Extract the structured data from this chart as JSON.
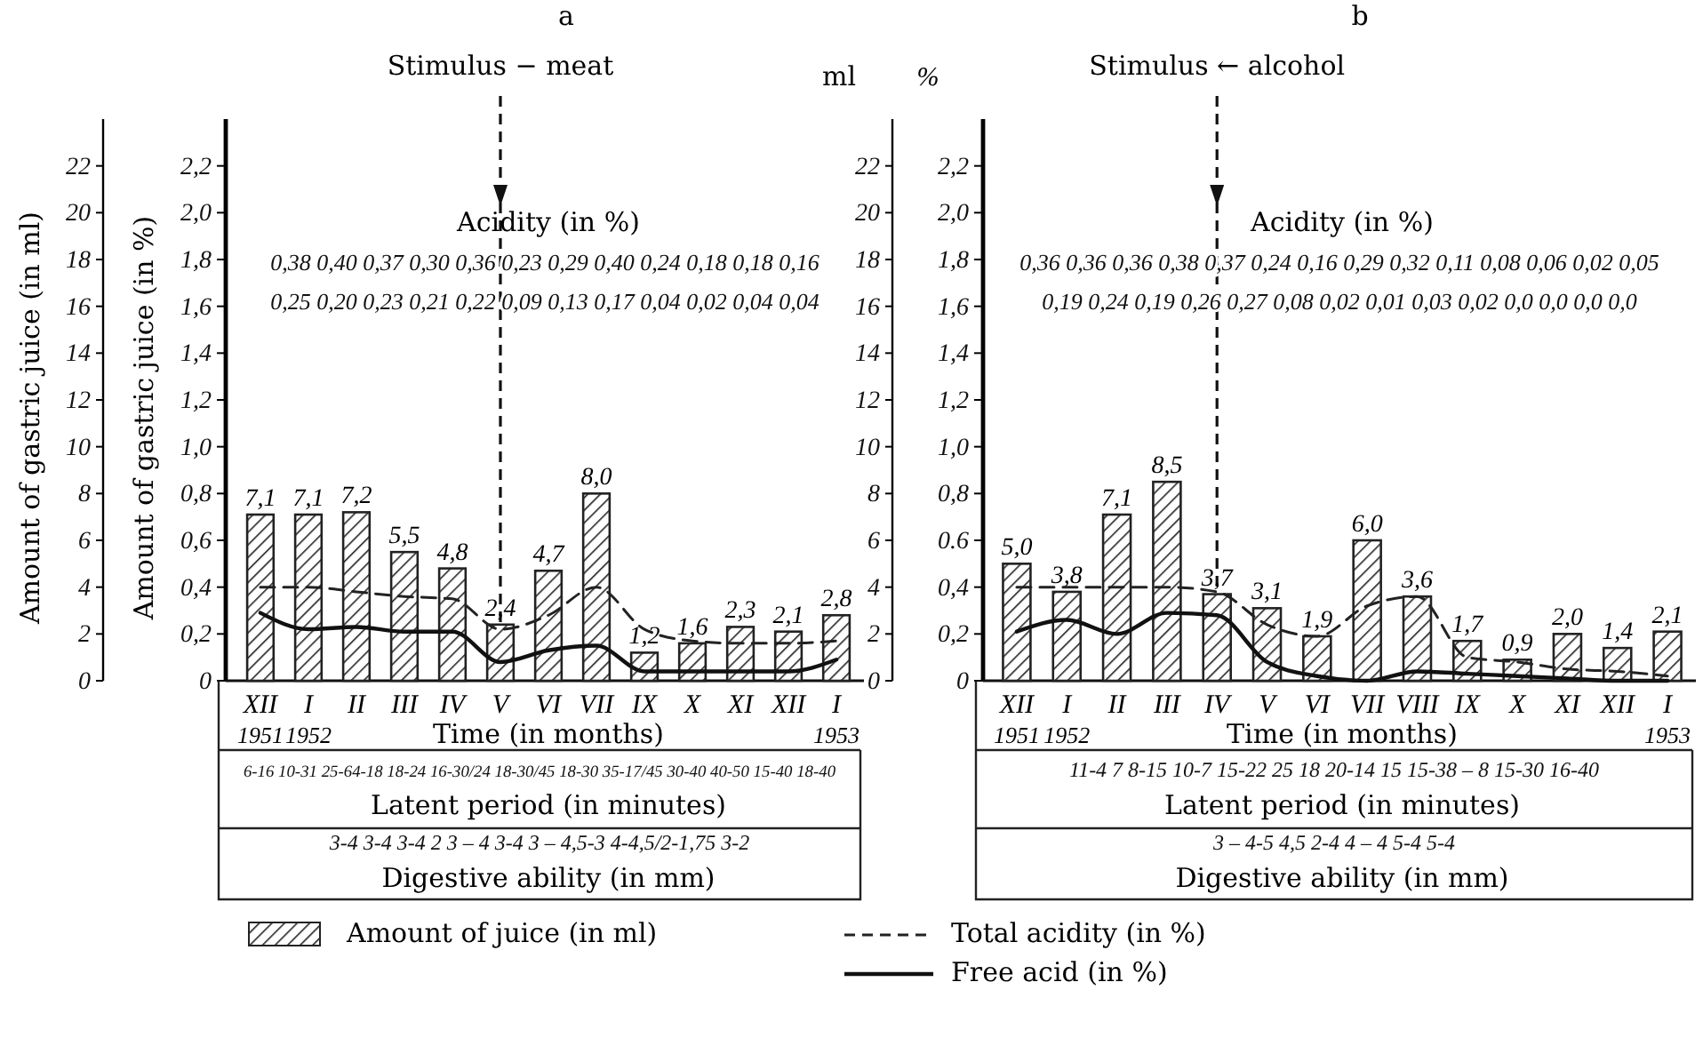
{
  "chart_data": [
    {
      "type": "bar",
      "title": "a",
      "xlabel": "Time (in months)",
      "ylabel": "Amount of gastric juice (in ml)",
      "y2label": "Amount of gastric juice (in %)",
      "categories": [
        "XII 1951",
        "I 1952",
        "II",
        "III",
        "IV",
        "V",
        "VI",
        "VII",
        "IX",
        "X",
        "XI",
        "XII",
        "I 1953"
      ],
      "ylim": [
        0,
        24
      ],
      "yticks": [
        0,
        2,
        4,
        6,
        8,
        10,
        12,
        14,
        16,
        18,
        20,
        22
      ],
      "y2lim": [
        0,
        2.4
      ],
      "y2ticks": [
        0,
        {
          "value": 0.2,
          "label": "0,2"
        },
        {
          "value": 0.4,
          "label": "0,4"
        },
        {
          "value": 0.6,
          "label": "0,6"
        },
        {
          "value": 0.8,
          "label": "0,8"
        },
        {
          "value": 1.0,
          "label": "1,0"
        },
        {
          "value": 1.2,
          "label": "1,2"
        },
        {
          "value": 1.4,
          "label": "1,4"
        },
        {
          "value": 1.6,
          "label": "1,6"
        },
        {
          "value": 1.8,
          "label": "1,8"
        },
        {
          "value": 2.0,
          "label": "2,0"
        },
        {
          "value": 2.2,
          "label": "2,2"
        }
      ],
      "series": [
        {
          "name": "Amount of juice (in ml)",
          "color": "#222222",
          "values": [
            7.1,
            7.1,
            7.2,
            5.5,
            4.8,
            2.4,
            4.7,
            8.0,
            1.2,
            1.6,
            2.3,
            2.1,
            2.8
          ],
          "value_labels": [
            "7,1",
            "7,1",
            "7,2",
            "5,5",
            "4,8",
            "2,4",
            "4,7",
            "8,0",
            "1,2",
            "1,6",
            "2,3",
            "2,1",
            "2,8"
          ]
        },
        {
          "name": "Total acidity (in %)",
          "type": "line",
          "axis": "y2",
          "line_style": "dashed",
          "color": "#222222",
          "values": [
            0.4,
            0.4,
            0.38,
            0.36,
            0.35,
            0.22,
            0.28,
            0.4,
            0.22,
            0.17,
            0.16,
            0.16,
            0.17
          ]
        },
        {
          "name": "Free acid (in %)",
          "type": "line",
          "axis": "y2",
          "line_style": "solid",
          "color": "#111111",
          "values": [
            0.29,
            0.22,
            0.23,
            0.21,
            0.21,
            0.08,
            0.13,
            0.15,
            0.04,
            0.04,
            0.04,
            0.04,
            0.09
          ]
        }
      ],
      "ref_lines": [
        {
          "axis": "x",
          "value": "V",
          "label": "Stimulus − meat",
          "line_style": "dashed"
        }
      ],
      "annotations": [
        "Acidity (in %)",
        "0,38 0,40 0,37 0,30 0,36 0,23 0,29 0,40 0,24 0,18 0,18 0,16",
        "0,25 0,20 0,23 0,21 0,22 0,09 0,13 0,17 0,04 0,02 0,04 0,04",
        "Latent period (in minutes)",
        "6-16 10-31 25-64-18 18-24 16-30/24 18-30/45 18-30 35-17/45 30-40 40-50 15-40 18-40",
        "Digestive ability (in mm)",
        "3-4 3-4 3-4 2 3 – 4 3-4 3 – 4,5-3 4-4,5/2-1,75 3-2"
      ],
      "legend": "bottom"
    },
    {
      "type": "bar",
      "title": "b",
      "ylabel": "ml",
      "y2label": "%",
      "xlabel": "Time (in months)",
      "categories": [
        "XII 1951",
        "I 1952",
        "II",
        "III",
        "IV",
        "V",
        "VI",
        "VII",
        "VIII",
        "IX",
        "X",
        "XI",
        "XII",
        "I 1953"
      ],
      "ylim": [
        0,
        24
      ],
      "yticks": [
        0,
        2,
        4,
        6,
        8,
        10,
        12,
        14,
        16,
        18,
        20,
        22
      ],
      "y2lim": [
        0,
        2.4
      ],
      "y2ticks": [
        0,
        {
          "value": 0.2,
          "label": "0,2"
        },
        {
          "value": 0.4,
          "label": "0,4"
        },
        {
          "value": 0.6,
          "label": "0.6"
        },
        {
          "value": 0.8,
          "label": "0,8"
        },
        {
          "value": 1.0,
          "label": "1,0"
        },
        {
          "value": 1.2,
          "label": "1,2"
        },
        {
          "value": 1.4,
          "label": "1,4"
        },
        {
          "value": 1.6,
          "label": "1,6"
        },
        {
          "value": 1.8,
          "label": "1,8"
        },
        {
          "value": 2.0,
          "label": "2,0"
        },
        {
          "value": 2.2,
          "label": "2,2"
        }
      ],
      "series": [
        {
          "color": "#222222",
          "values": [
            5.0,
            3.8,
            7.1,
            8.5,
            3.7,
            3.1,
            1.9,
            6.0,
            3.6,
            1.7,
            0.9,
            2.0,
            1.4,
            2.1
          ],
          "value_labels": [
            "5,0",
            "3,8",
            "7,1",
            "8,5",
            "3,7",
            "3,1",
            "1,9",
            "6,0",
            "3,6",
            "1,7",
            "0,9",
            "2,0",
            "1,4",
            "2,1"
          ]
        },
        {
          "type": "line",
          "axis": "y2",
          "line_style": "dashed",
          "color": "#222222",
          "values": [
            0.4,
            0.4,
            0.4,
            0.4,
            0.38,
            0.24,
            0.19,
            0.32,
            0.36,
            0.1,
            0.08,
            0.05,
            0.04,
            0.02
          ]
        },
        {
          "type": "line",
          "axis": "y2",
          "line_style": "solid",
          "color": "#111111",
          "values": [
            0.21,
            0.26,
            0.2,
            0.29,
            0.28,
            0.08,
            0.02,
            0.0,
            0.04,
            0.03,
            0.02,
            0.01,
            0.0,
            0.0
          ]
        }
      ],
      "ref_lines": [
        {
          "axis": "x",
          "value": "IV",
          "label": "Stimulus ← alcohol",
          "line_style": "dashed"
        }
      ],
      "annotations": [
        "Acidity (in %)",
        "0,36 0,36 0,36 0,38 0,37 0,24 0,16 0,29 0,32 0,11 0,08 0,06 0,02 0,05",
        "0,19 0,24 0,19 0,26 0,27 0,08 0,02 0,01 0,03 0,02 0,0 0,0 0,0 0,0",
        "Latent period (in minutes)",
        "11-4 7 8-15 10-7 15-22 25 18 20-14 15 15-38 – 8 15-30 16-40",
        "Digestive ability (in mm)",
        "3 – 4-5 4,5 2-4 4 – 4 5-4 5-4"
      ],
      "legend": false
    }
  ]
}
